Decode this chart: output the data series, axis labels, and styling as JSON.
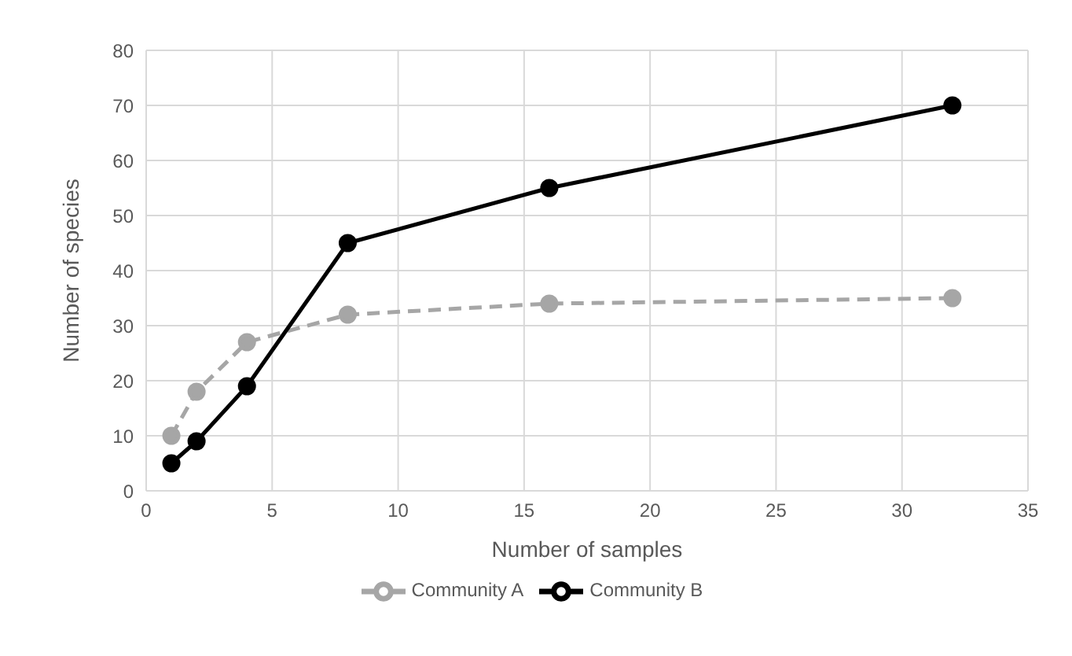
{
  "chart_data": {
    "type": "line",
    "xlabel": "Number of samples",
    "ylabel": "Number of species",
    "xlim": [
      0,
      35
    ],
    "xticks": [
      0,
      5,
      10,
      15,
      20,
      25,
      30,
      35
    ],
    "ylim": [
      0,
      80
    ],
    "yticks": [
      0,
      10,
      20,
      30,
      40,
      50,
      60,
      70,
      80
    ],
    "grid": true,
    "legend": "bottom",
    "marker": "circle",
    "series": [
      {
        "name": "Community A",
        "color": "#a6a6a6",
        "line_style": "dashed",
        "x": [
          1,
          2,
          4,
          8,
          16,
          32
        ],
        "values": [
          10,
          18,
          27,
          32,
          34,
          35
        ]
      },
      {
        "name": "Community B",
        "color": "#000000",
        "line_style": "solid",
        "x": [
          1,
          2,
          4,
          8,
          16,
          32
        ],
        "values": [
          5,
          9,
          19,
          45,
          55,
          70
        ]
      }
    ]
  }
}
